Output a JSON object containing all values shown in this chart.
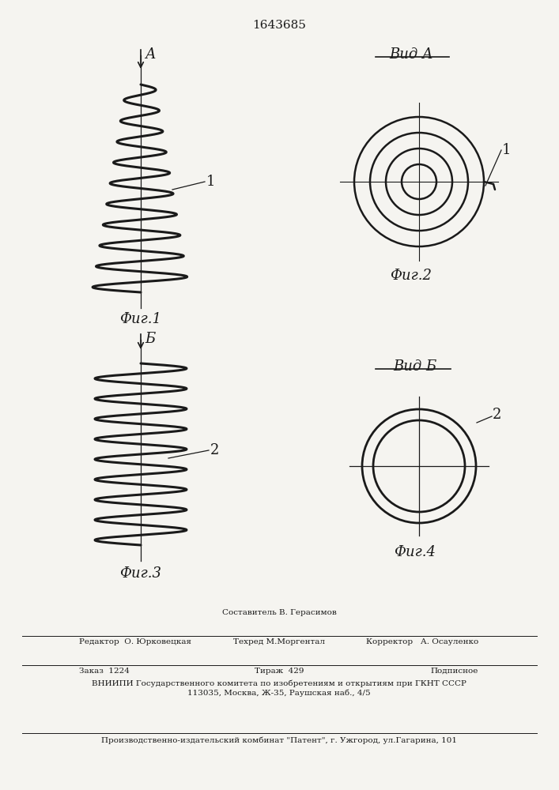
{
  "patent_number": "1643685",
  "bg_color": "#f5f4f0",
  "line_color": "#1a1a1a",
  "fig1_label": "Фиг.1",
  "fig2_label": "Фиг.2",
  "fig3_label": "Фиг.3",
  "fig4_label": "Фиг.4",
  "vid_a_label": "Вид А",
  "vid_b_label": "Вид Б",
  "label1": "1",
  "label2": "2",
  "arrow_a_label": "А",
  "arrow_b_label": "Б",
  "bottom_line1": "Составитель В. Герасимов",
  "bottom_line2_left": "Редактор  О. Юрковецкая",
  "bottom_line2_mid": "Техред М.Моргентал",
  "bottom_line2_right": "Корректор   А. Осауленко",
  "bottom_line3_left": "Заказ  1224",
  "bottom_line3_mid": "Тираж  429",
  "bottom_line3_right": "Подписное",
  "bottom_line4": "ВНИИПИ Государственного комитета по изобретениям и открытиям при ГКНТ СССР",
  "bottom_line5": "113035, Москва, Ж-35, Раушская наб., 4/5",
  "bottom_line6": "Производственно-издательский комбинат \"Патент\", г. Ужгород, ул.Гагарина, 101"
}
